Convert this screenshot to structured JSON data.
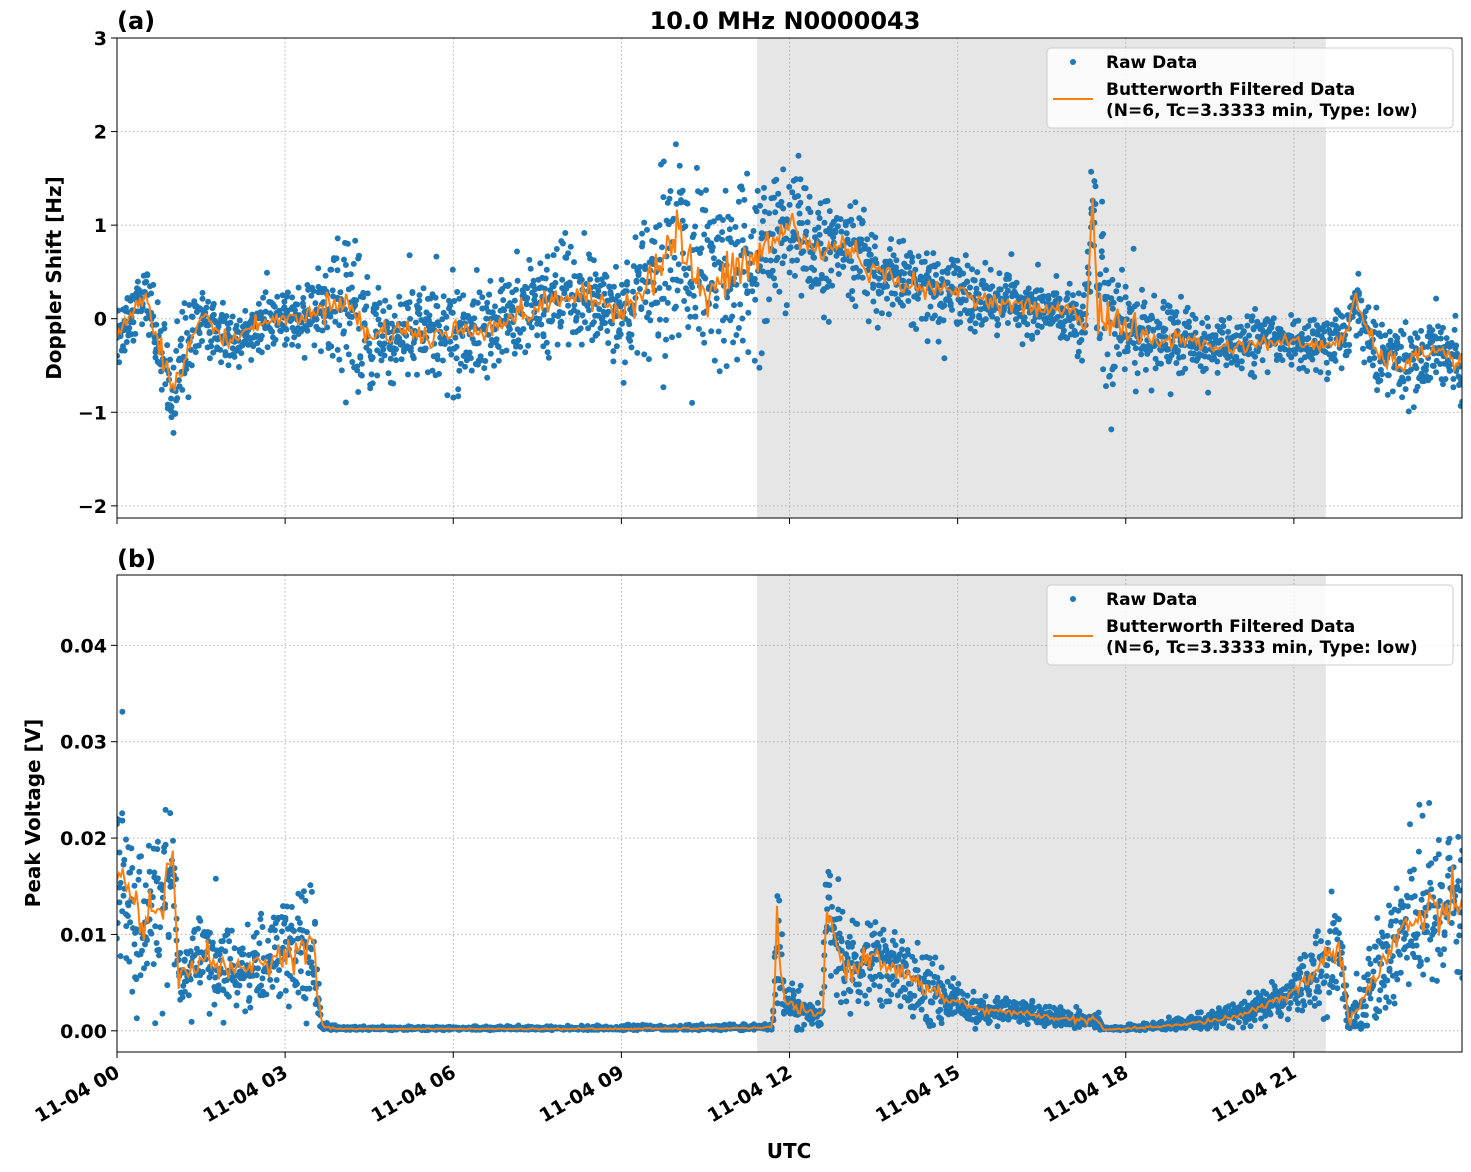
{
  "title": "10.0 MHz N0000043",
  "xlabel": "UTC",
  "x_tick_labels": [
    "11-04 00",
    "11-04 03",
    "11-04 06",
    "11-04 09",
    "11-04 12",
    "11-04 15",
    "11-04 18",
    "11-04 21"
  ],
  "x_tick_hours": [
    0,
    3,
    6,
    9,
    12,
    15,
    18,
    21
  ],
  "colors": {
    "raw": "#1f77b4",
    "filtered": "#ff7f0e",
    "shade": "#e6e6e6"
  },
  "chart_data": [
    {
      "type": "scatter+line",
      "panel_label": "(a)",
      "ylabel": "Doppler Shift [Hz]",
      "xlim_hours": [
        0,
        24
      ],
      "ylim": [
        -2.13,
        3.0
      ],
      "y_ticks": [
        -2,
        -1,
        0,
        1,
        2,
        3
      ],
      "y_tick_labels": [
        "−2",
        "−1",
        "0",
        "1",
        "2",
        "3"
      ],
      "grid": true,
      "shaded_region_hours": [
        11.42,
        21.57
      ],
      "legend": {
        "placement": "top-right",
        "entries": [
          "Raw Data",
          "Butterworth Filtered Data",
          "(N=6, Tc=3.3333 min, Type: low)"
        ]
      },
      "filtered": {
        "x_hours": [
          0,
          0.5,
          1.0,
          1.5,
          2,
          2.5,
          3,
          3.5,
          4,
          4.5,
          5,
          5.5,
          6,
          6.5,
          7,
          7.5,
          8,
          8.5,
          9,
          9.5,
          10,
          10.5,
          11,
          11.5,
          12,
          12.5,
          13,
          13.5,
          14,
          14.5,
          15,
          15.5,
          16,
          16.5,
          17,
          17.3,
          17.4,
          17.5,
          18,
          18.5,
          19,
          19.5,
          20,
          20.5,
          21,
          21.5,
          21.9,
          22.1,
          22.5,
          23,
          23.5,
          24
        ],
        "y": [
          -0.2,
          0.3,
          -0.8,
          0.05,
          -0.25,
          -0.05,
          0.0,
          0.05,
          0.25,
          -0.2,
          -0.1,
          -0.2,
          -0.15,
          -0.1,
          0.0,
          0.1,
          0.25,
          0.2,
          0.1,
          0.4,
          0.9,
          0.2,
          0.5,
          0.7,
          1.0,
          0.7,
          0.8,
          0.5,
          0.4,
          0.3,
          0.3,
          0.2,
          0.15,
          0.1,
          0.1,
          -0.1,
          1.4,
          0.1,
          -0.1,
          -0.25,
          -0.2,
          -0.3,
          -0.3,
          -0.25,
          -0.25,
          -0.3,
          -0.2,
          0.2,
          -0.4,
          -0.5,
          -0.3,
          -0.5
        ],
        "raw_spread": [
          0.35,
          0.3,
          0.6,
          0.3,
          0.3,
          0.25,
          0.25,
          0.3,
          0.6,
          0.5,
          0.5,
          0.5,
          0.5,
          0.45,
          0.45,
          0.45,
          0.5,
          0.5,
          0.5,
          0.7,
          1.0,
          0.9,
          0.9,
          0.9,
          0.7,
          0.6,
          0.5,
          0.45,
          0.4,
          0.35,
          0.35,
          0.3,
          0.3,
          0.25,
          0.3,
          0.3,
          0.8,
          1.0,
          0.6,
          0.4,
          0.3,
          0.3,
          0.25,
          0.25,
          0.25,
          0.25,
          0.3,
          0.3,
          0.35,
          0.35,
          0.35,
          0.35
        ]
      }
    },
    {
      "type": "scatter+line",
      "panel_label": "(b)",
      "ylabel": "Peak Voltage [V]",
      "xlim_hours": [
        0,
        24
      ],
      "ylim": [
        -0.0022,
        0.0473
      ],
      "y_ticks": [
        0,
        0.01,
        0.02,
        0.03,
        0.04
      ],
      "y_tick_labels": [
        "0.00",
        "0.01",
        "0.02",
        "0.03",
        "0.04"
      ],
      "grid": true,
      "shaded_region_hours": [
        11.42,
        21.57
      ],
      "legend": {
        "placement": "top-right",
        "entries": [
          "Raw Data",
          "Butterworth Filtered Data",
          "(N=6, Tc=3.3333 min, Type: low)"
        ]
      },
      "filtered": {
        "x_hours": [
          0,
          0.5,
          1.0,
          1.1,
          1.5,
          2,
          2.5,
          3,
          3.5,
          3.65,
          3.8,
          4,
          6,
          9,
          11.5,
          11.7,
          11.78,
          11.9,
          12.5,
          12.6,
          12.65,
          13,
          13.5,
          14,
          14.5,
          15,
          15.5,
          16,
          16.5,
          17,
          17.5,
          17.6,
          18,
          19,
          20,
          21,
          21.5,
          21.8,
          22,
          22.5,
          23,
          23.5,
          24
        ],
        "y": [
          0.017,
          0.011,
          0.017,
          0.005,
          0.008,
          0.006,
          0.007,
          0.008,
          0.009,
          0.0005,
          0.0003,
          0.0002,
          0.0002,
          0.0002,
          0.0003,
          0.0004,
          0.011,
          0.003,
          0.0015,
          0.002,
          0.013,
          0.006,
          0.008,
          0.006,
          0.004,
          0.003,
          0.002,
          0.002,
          0.0015,
          0.0012,
          0.0011,
          0.0001,
          0.0002,
          0.0006,
          0.0015,
          0.004,
          0.007,
          0.009,
          0.001,
          0.006,
          0.011,
          0.012,
          0.013
        ],
        "raw_spread": [
          0.009,
          0.008,
          0.01,
          0.004,
          0.005,
          0.004,
          0.004,
          0.005,
          0.007,
          0.0005,
          0.0003,
          0.0002,
          0.0002,
          0.0003,
          0.0003,
          0.0004,
          0.008,
          0.002,
          0.0012,
          0.002,
          0.006,
          0.004,
          0.004,
          0.0035,
          0.003,
          0.002,
          0.0015,
          0.0012,
          0.001,
          0.001,
          0.001,
          0.0002,
          0.0003,
          0.0006,
          0.0012,
          0.002,
          0.004,
          0.005,
          0.002,
          0.005,
          0.007,
          0.009,
          0.008
        ]
      }
    }
  ]
}
